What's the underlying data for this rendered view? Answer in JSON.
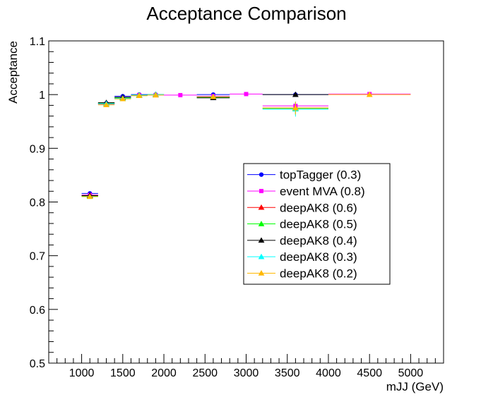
{
  "chart_data": {
    "type": "scatter",
    "title": "Acceptance Comparison",
    "xlabel": "mJJ (GeV)",
    "ylabel": "Acceptance",
    "xlim": [
      600,
      5400
    ],
    "ylim": [
      0.5,
      1.1
    ],
    "xticks": [
      "1000",
      "1500",
      "2000",
      "2500",
      "3000",
      "3500",
      "4000",
      "4500",
      "5000"
    ],
    "yticks": [
      "0.5",
      "0.6",
      "0.7",
      "0.8",
      "0.9",
      "1",
      "1.1"
    ],
    "grid": false,
    "legend_position": "right-middle",
    "series": [
      {
        "name": "topTagger (0.3)",
        "color": "#0000ff",
        "marker": "circle",
        "points": [
          {
            "x": 1100,
            "xerr": 100,
            "y": 0.816,
            "yerr": 0.003
          },
          {
            "x": 1300,
            "xerr": 100,
            "y": 0.984,
            "yerr": 0.003
          },
          {
            "x": 1500,
            "xerr": 100,
            "y": 0.997,
            "yerr": 0.002
          },
          {
            "x": 1700,
            "xerr": 100,
            "y": 1.0,
            "yerr": 0.002
          },
          {
            "x": 1900,
            "xerr": 100,
            "y": 1.0,
            "yerr": 0.002
          },
          {
            "x": 2600,
            "xerr": 200,
            "y": 1.0,
            "yerr": 0.002
          },
          {
            "x": 3600,
            "xerr": 400,
            "y": 1.0,
            "yerr": 0.002
          }
        ]
      },
      {
        "name": "event MVA (0.8)",
        "color": "#ff00ff",
        "marker": "square",
        "points": [
          {
            "x": 1100,
            "xerr": 100,
            "y": 0.813,
            "yerr": 0.003
          },
          {
            "x": 1300,
            "xerr": 100,
            "y": 0.982,
            "yerr": 0.003
          },
          {
            "x": 1500,
            "xerr": 100,
            "y": 0.993,
            "yerr": 0.002
          },
          {
            "x": 1700,
            "xerr": 100,
            "y": 0.999,
            "yerr": 0.002
          },
          {
            "x": 1900,
            "xerr": 100,
            "y": 0.999,
            "yerr": 0.002
          },
          {
            "x": 2200,
            "xerr": 200,
            "y": 0.999,
            "yerr": 0.002
          },
          {
            "x": 2600,
            "xerr": 200,
            "y": 0.997,
            "yerr": 0.002
          },
          {
            "x": 3000,
            "xerr": 200,
            "y": 1.001,
            "yerr": 0.002
          },
          {
            "x": 3600,
            "xerr": 400,
            "y": 0.979,
            "yerr": 0.007
          },
          {
            "x": 4500,
            "xerr": 500,
            "y": 1.001,
            "yerr": 0.002
          }
        ]
      },
      {
        "name": "deepAK8 (0.6)",
        "color": "#ff0000",
        "marker": "triangle",
        "points": [
          {
            "x": 1100,
            "xerr": 100,
            "y": 0.812,
            "yerr": 0.003
          },
          {
            "x": 1300,
            "xerr": 100,
            "y": 0.983,
            "yerr": 0.003
          },
          {
            "x": 1500,
            "xerr": 100,
            "y": 0.994,
            "yerr": 0.002
          },
          {
            "x": 1700,
            "xerr": 100,
            "y": 0.999,
            "yerr": 0.002
          },
          {
            "x": 1900,
            "xerr": 100,
            "y": 1.0,
            "yerr": 0.002
          },
          {
            "x": 2600,
            "xerr": 200,
            "y": 0.995,
            "yerr": 0.003
          },
          {
            "x": 3600,
            "xerr": 400,
            "y": 0.975,
            "yerr": 0.01
          }
        ]
      },
      {
        "name": "deepAK8 (0.5)",
        "color": "#00ff00",
        "marker": "triangle",
        "points": [
          {
            "x": 1100,
            "xerr": 100,
            "y": 0.811,
            "yerr": 0.003
          },
          {
            "x": 1300,
            "xerr": 100,
            "y": 0.984,
            "yerr": 0.003
          },
          {
            "x": 1500,
            "xerr": 100,
            "y": 0.994,
            "yerr": 0.002
          },
          {
            "x": 1700,
            "xerr": 100,
            "y": 0.999,
            "yerr": 0.002
          },
          {
            "x": 1900,
            "xerr": 100,
            "y": 1.0,
            "yerr": 0.002
          },
          {
            "x": 2600,
            "xerr": 200,
            "y": 0.995,
            "yerr": 0.003
          },
          {
            "x": 3600,
            "xerr": 400,
            "y": 0.974,
            "yerr": 0.012
          }
        ]
      },
      {
        "name": "deepAK8 (0.4)",
        "color": "#000000",
        "marker": "triangle",
        "points": [
          {
            "x": 1100,
            "xerr": 100,
            "y": 0.812,
            "yerr": 0.003
          },
          {
            "x": 1300,
            "xerr": 100,
            "y": 0.985,
            "yerr": 0.003
          },
          {
            "x": 1500,
            "xerr": 100,
            "y": 0.995,
            "yerr": 0.002
          },
          {
            "x": 1700,
            "xerr": 100,
            "y": 0.999,
            "yerr": 0.002
          },
          {
            "x": 1900,
            "xerr": 100,
            "y": 1.0,
            "yerr": 0.002
          },
          {
            "x": 2600,
            "xerr": 200,
            "y": 0.994,
            "yerr": 0.003
          },
          {
            "x": 3600,
            "xerr": 400,
            "y": 1.0,
            "yerr": 0.003
          }
        ]
      },
      {
        "name": "deepAK8 (0.3)",
        "color": "#00ffff",
        "marker": "triangle",
        "points": [
          {
            "x": 1100,
            "xerr": 100,
            "y": 0.81,
            "yerr": 0.003
          },
          {
            "x": 1300,
            "xerr": 100,
            "y": 0.983,
            "yerr": 0.003
          },
          {
            "x": 1500,
            "xerr": 100,
            "y": 0.993,
            "yerr": 0.002
          },
          {
            "x": 1700,
            "xerr": 100,
            "y": 0.999,
            "yerr": 0.002
          },
          {
            "x": 1900,
            "xerr": 100,
            "y": 1.0,
            "yerr": 0.002
          },
          {
            "x": 2600,
            "xerr": 200,
            "y": 0.996,
            "yerr": 0.003
          },
          {
            "x": 3600,
            "xerr": 400,
            "y": 0.973,
            "yerr": 0.014
          }
        ]
      },
      {
        "name": "deepAK8 (0.2)",
        "color": "#ffb800",
        "marker": "triangle",
        "points": [
          {
            "x": 1100,
            "xerr": 100,
            "y": 0.81,
            "yerr": 0.003
          },
          {
            "x": 1300,
            "xerr": 100,
            "y": 0.981,
            "yerr": 0.003
          },
          {
            "x": 1500,
            "xerr": 100,
            "y": 0.992,
            "yerr": 0.002
          },
          {
            "x": 1700,
            "xerr": 100,
            "y": 0.998,
            "yerr": 0.002
          },
          {
            "x": 1900,
            "xerr": 100,
            "y": 0.999,
            "yerr": 0.002
          },
          {
            "x": 2600,
            "xerr": 200,
            "y": 0.996,
            "yerr": 0.003
          },
          {
            "x": 3600,
            "xerr": 400,
            "y": 0.975,
            "yerr": 0.012
          },
          {
            "x": 4500,
            "xerr": 500,
            "y": 1.0,
            "yerr": 0.002
          }
        ]
      }
    ]
  }
}
